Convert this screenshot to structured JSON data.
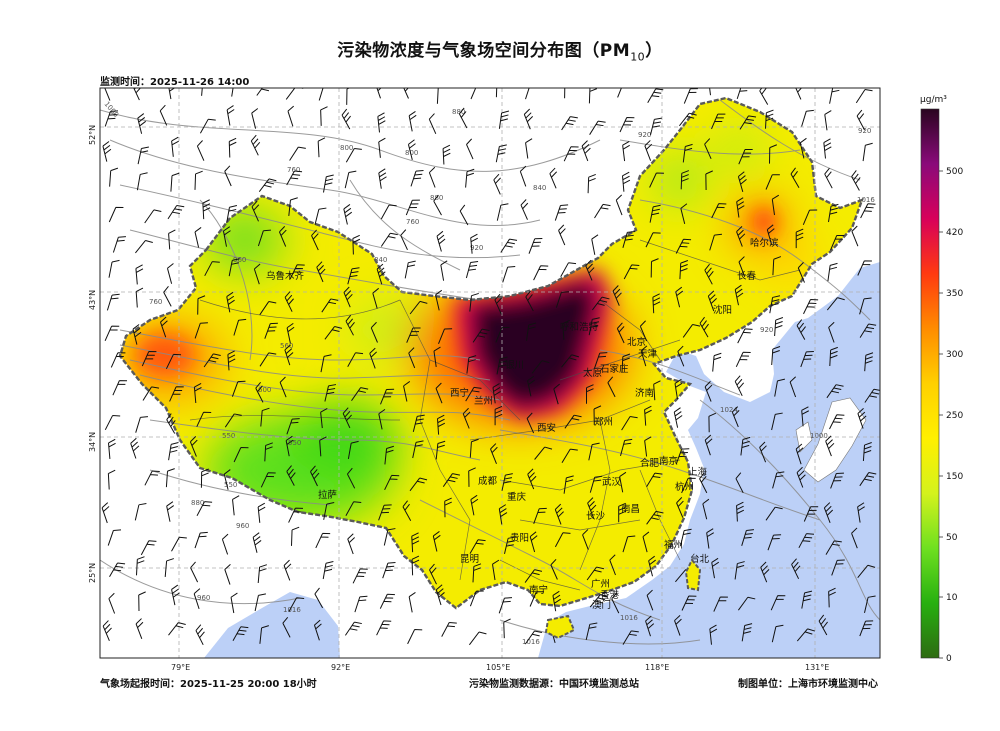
{
  "title": {
    "main": "污染物浓度与气象场空间分布图（PM",
    "sub": "10",
    "close": "）"
  },
  "monitor_time": "监测时间：2025-11-26 14:00",
  "forecast_time": "气象场起报时间：2025-11-25 20:00 18小时",
  "data_source": "污染物监测数据源：中国环境监测总站",
  "producer": "制图单位：上海市环境监测中心",
  "colorbar": {
    "unit": "μg/m³",
    "ticks": [
      "0",
      "10",
      "50",
      "150",
      "250",
      "300",
      "350",
      "420",
      "500"
    ],
    "colors": [
      "#2e6b12",
      "#27b010",
      "#6fe020",
      "#d4f21c",
      "#fff000",
      "#ffd000",
      "#ff8c00",
      "#ff3a10",
      "#d8005a",
      "#8a0a7a",
      "#2a0520"
    ]
  },
  "axes": {
    "x_ticks": [
      "79°E",
      "92°E",
      "105°E",
      "118°E",
      "131°E"
    ],
    "y_ticks": [
      "52°N",
      "43°N",
      "34°N",
      "25°N"
    ]
  },
  "contour_labels": [
    "1000",
    "880",
    "800",
    "760",
    "760",
    "840",
    "920",
    "920",
    "1016",
    "960",
    "840",
    "760",
    "560",
    "600",
    "550",
    "550",
    "550",
    "880",
    "960",
    "1016",
    "1016",
    "920",
    "1024",
    "1000",
    "1016",
    "960",
    "880",
    "800",
    "920"
  ],
  "cities": [
    "乌鲁木齐",
    "哈尔滨",
    "长春",
    "沈阳",
    "呼和浩特",
    "北京",
    "天津",
    "银川",
    "太原",
    "石家庄",
    "西宁",
    "兰州",
    "济南",
    "西安",
    "郑州",
    "合肥",
    "南京",
    "上海",
    "成都",
    "武汉",
    "杭州",
    "重庆",
    "长沙",
    "南昌",
    "拉萨",
    "贵阳",
    "福州",
    "台北",
    "昆明",
    "南宁",
    "广州",
    "香港",
    "澳门",
    "海口"
  ],
  "icons": {
    "wind_barb": "wind-barb-icon"
  }
}
